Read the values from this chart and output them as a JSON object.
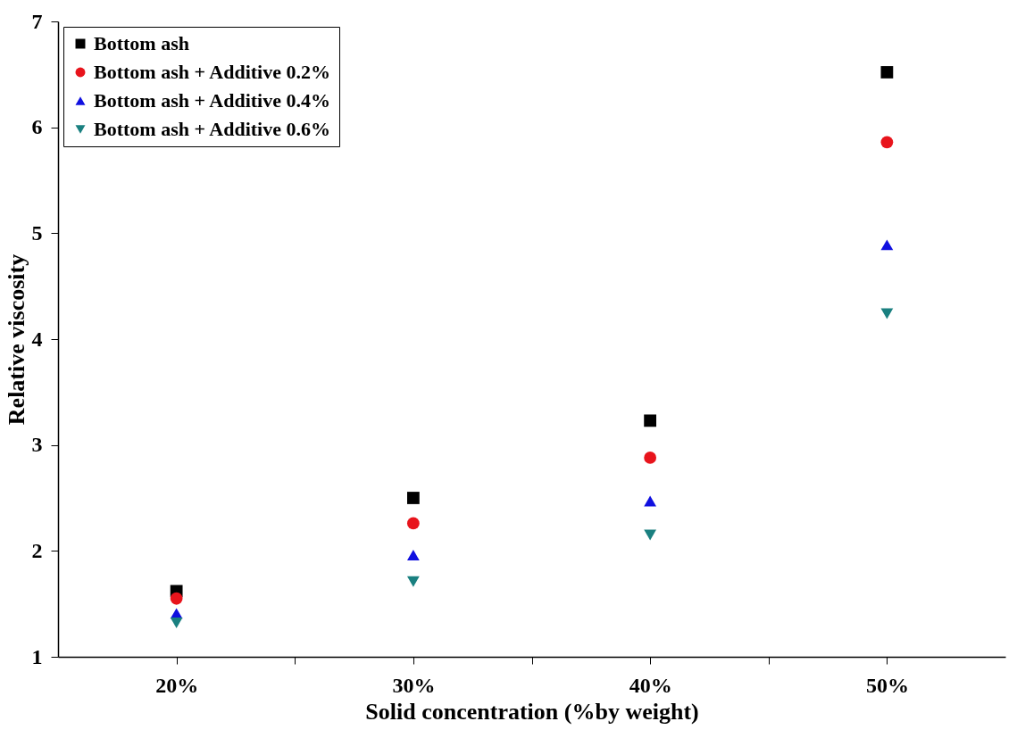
{
  "chart_data": {
    "type": "scatter",
    "xlabel": "Solid concentration (%by weight)",
    "ylabel": "Relative viscosity",
    "x": [
      20,
      30,
      40,
      50
    ],
    "series": [
      {
        "name": "Bottom ash",
        "color": "#000000",
        "marker": "square",
        "values": [
          1.62,
          2.5,
          3.23,
          6.52
        ]
      },
      {
        "name": "Bottom ash + Additive 0.2%",
        "color": "#e8141c",
        "marker": "circle",
        "values": [
          1.55,
          2.26,
          2.88,
          5.86
        ]
      },
      {
        "name": "Bottom ash + Additive 0.4%",
        "color": "#1010e0",
        "marker": "triangle",
        "values": [
          1.41,
          1.96,
          2.47,
          4.89
        ]
      },
      {
        "name": "Bottom ash + Additive 0.6%",
        "color": "#1a8080",
        "marker": "triangle-down",
        "values": [
          1.32,
          1.71,
          2.15,
          4.24
        ]
      }
    ],
    "xlim": [
      15,
      55
    ],
    "xticks": [
      {
        "value": 20,
        "label": "20%"
      },
      {
        "value": 25,
        "label": null
      },
      {
        "value": 30,
        "label": "30%"
      },
      {
        "value": 35,
        "label": null
      },
      {
        "value": 40,
        "label": "40%"
      },
      {
        "value": 45,
        "label": null
      },
      {
        "value": 50,
        "label": "50%"
      }
    ],
    "ylim": [
      1,
      7
    ],
    "yticks": [
      1,
      2,
      3,
      4,
      5,
      6,
      7
    ],
    "grid": false,
    "legend": "top left"
  }
}
